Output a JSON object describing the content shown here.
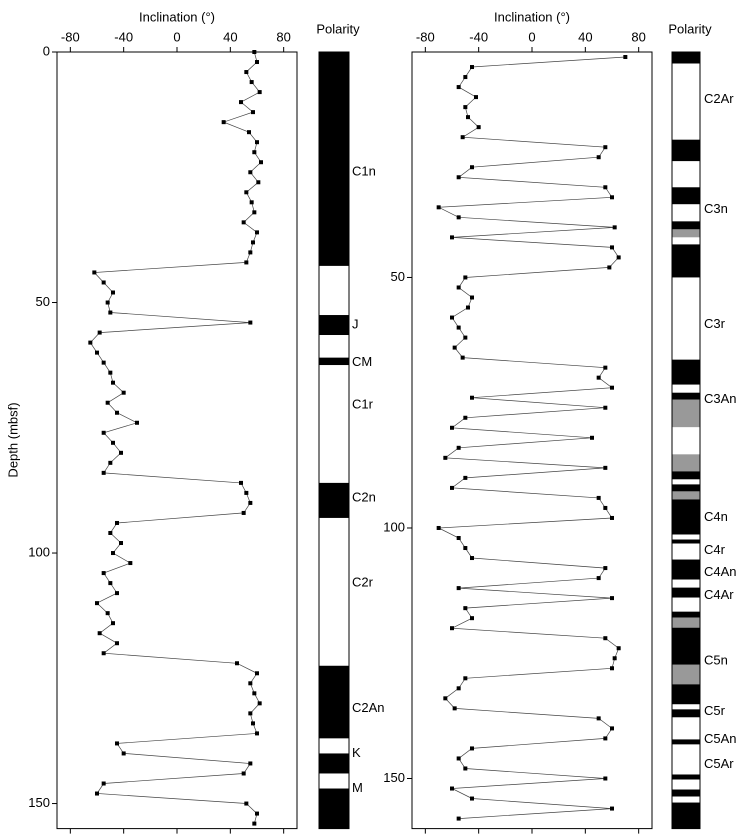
{
  "chart_data": [
    {
      "type": "scatter",
      "xlabel": "Inclination (°)",
      "ylabel": "Depth (mbsf)",
      "xlim": [
        -90,
        90
      ],
      "xticks": [
        -80,
        -40,
        0,
        40,
        80
      ],
      "ylim": [
        0,
        155
      ],
      "yticks": [
        0,
        50,
        100,
        150
      ],
      "color": "#000000",
      "depth": [
        0,
        2,
        4,
        6,
        8,
        10,
        12,
        14,
        16,
        18,
        20,
        22,
        24,
        26,
        28,
        30,
        32,
        34,
        36,
        38,
        40,
        42,
        44,
        46,
        48,
        50,
        52,
        54,
        56,
        58,
        60,
        62,
        64,
        66,
        68,
        70,
        72,
        74,
        76,
        78,
        80,
        82,
        84,
        86,
        88,
        90,
        92,
        94,
        96,
        98,
        100,
        102,
        104,
        106,
        108,
        110,
        112,
        114,
        116,
        118,
        120,
        122,
        124,
        126,
        128,
        130,
        132,
        134,
        136,
        138,
        140,
        142,
        144,
        146,
        148,
        150,
        152,
        154
      ],
      "inclination": [
        58,
        60,
        52,
        56,
        62,
        48,
        57,
        35,
        54,
        60,
        58,
        63,
        55,
        61,
        52,
        56,
        58,
        50,
        60,
        57,
        55,
        52,
        -62,
        -55,
        -48,
        -52,
        -50,
        55,
        -58,
        -65,
        -60,
        -55,
        -50,
        -48,
        -40,
        -52,
        -45,
        -30,
        -55,
        -48,
        -42,
        -50,
        -55,
        48,
        52,
        55,
        50,
        -45,
        -50,
        -42,
        -48,
        -35,
        -55,
        -50,
        -45,
        -60,
        -52,
        -48,
        -58,
        -45,
        -55,
        45,
        60,
        55,
        58,
        62,
        55,
        57,
        60,
        -45,
        -40,
        55,
        50,
        -55,
        -60,
        52,
        60,
        58
      ],
      "polarity": {
        "title": "Polarity",
        "colors": {
          "N": "#000000",
          "R": "#ffffff",
          "U": "#999999"
        },
        "zones": [
          {
            "top": 0,
            "bottom": 42.7,
            "pol": "N"
          },
          {
            "top": 42.7,
            "bottom": 52.5,
            "pol": "R"
          },
          {
            "top": 52.5,
            "bottom": 56.5,
            "pol": "N"
          },
          {
            "top": 56.5,
            "bottom": 61,
            "pol": "R"
          },
          {
            "top": 61,
            "bottom": 62.5,
            "pol": "N"
          },
          {
            "top": 62.5,
            "bottom": 86,
            "pol": "R"
          },
          {
            "top": 86,
            "bottom": 93,
            "pol": "N"
          },
          {
            "top": 93,
            "bottom": 122.5,
            "pol": "R"
          },
          {
            "top": 122.5,
            "bottom": 137,
            "pol": "N"
          },
          {
            "top": 137,
            "bottom": 140,
            "pol": "R"
          },
          {
            "top": 140,
            "bottom": 144,
            "pol": "N"
          },
          {
            "top": 144,
            "bottom": 147,
            "pol": "R"
          },
          {
            "top": 147,
            "bottom": 155,
            "pol": "N"
          }
        ],
        "labels": [
          {
            "text": "C1n",
            "depth": 24
          },
          {
            "text": "J",
            "depth": 54.5
          },
          {
            "text": "CM",
            "depth": 62
          },
          {
            "text": "C1r",
            "depth": 70.5
          },
          {
            "text": "C2n",
            "depth": 89
          },
          {
            "text": "C2r",
            "depth": 106
          },
          {
            "text": "C2An",
            "depth": 131
          },
          {
            "text": "K",
            "depth": 140
          },
          {
            "text": "M",
            "depth": 147
          }
        ]
      }
    },
    {
      "type": "scatter",
      "xlabel": "Inclination (°)",
      "xlim": [
        -90,
        90
      ],
      "xticks": [
        -80,
        -40,
        0,
        40,
        80
      ],
      "ylim": [
        5,
        160
      ],
      "yticks": [
        50,
        100,
        150
      ],
      "color": "#000000",
      "depth": [
        6,
        8,
        10,
        12,
        14,
        16,
        18,
        20,
        22,
        24,
        26,
        28,
        30,
        32,
        34,
        36,
        38,
        40,
        42,
        44,
        46,
        48,
        50,
        52,
        54,
        56,
        58,
        60,
        62,
        64,
        66,
        68,
        70,
        72,
        74,
        76,
        78,
        80,
        82,
        84,
        86,
        88,
        90,
        92,
        94,
        96,
        98,
        100,
        102,
        104,
        106,
        108,
        110,
        112,
        114,
        116,
        118,
        120,
        122,
        124,
        126,
        128,
        130,
        132,
        134,
        136,
        138,
        140,
        142,
        144,
        146,
        148,
        150,
        152,
        154,
        156,
        158
      ],
      "inclination": [
        70,
        -45,
        -50,
        -55,
        -42,
        -50,
        -48,
        -40,
        -52,
        55,
        50,
        -45,
        -55,
        55,
        60,
        -70,
        -55,
        62,
        -60,
        60,
        65,
        58,
        -50,
        -55,
        -45,
        -48,
        -60,
        -55,
        -50,
        -58,
        -52,
        55,
        50,
        60,
        -45,
        55,
        -50,
        -60,
        45,
        -55,
        -65,
        55,
        -50,
        -60,
        50,
        55,
        60,
        -70,
        -55,
        -50,
        -45,
        55,
        50,
        -55,
        60,
        -50,
        -45,
        -60,
        55,
        65,
        62,
        60,
        -50,
        -55,
        -65,
        -58,
        50,
        60,
        55,
        -45,
        -55,
        -50,
        55,
        -60,
        -45,
        60,
        -55
      ],
      "polarity": {
        "title": "Polarity",
        "colors": {
          "N": "#000000",
          "R": "#ffffff",
          "U": "#999999"
        },
        "zones": [
          {
            "top": 5,
            "bottom": 7.3,
            "pol": "N"
          },
          {
            "top": 7.3,
            "bottom": 22.5,
            "pol": "R"
          },
          {
            "top": 22.5,
            "bottom": 26.8,
            "pol": "N"
          },
          {
            "top": 26.8,
            "bottom": 32,
            "pol": "R"
          },
          {
            "top": 32,
            "bottom": 35.4,
            "pol": "N"
          },
          {
            "top": 35.4,
            "bottom": 38.8,
            "pol": "R"
          },
          {
            "top": 38.8,
            "bottom": 40.4,
            "pol": "N"
          },
          {
            "top": 40.4,
            "bottom": 42,
            "pol": "U"
          },
          {
            "top": 42,
            "bottom": 43.4,
            "pol": "R"
          },
          {
            "top": 43.4,
            "bottom": 50,
            "pol": "N"
          },
          {
            "top": 50,
            "bottom": 66.4,
            "pol": "R"
          },
          {
            "top": 66.4,
            "bottom": 71.4,
            "pol": "N"
          },
          {
            "top": 71.4,
            "bottom": 73,
            "pol": "R"
          },
          {
            "top": 73,
            "bottom": 74.4,
            "pol": "N"
          },
          {
            "top": 74.4,
            "bottom": 79.9,
            "pol": "U"
          },
          {
            "top": 79.9,
            "bottom": 85.3,
            "pol": "R"
          },
          {
            "top": 85.3,
            "bottom": 88.7,
            "pol": "U"
          },
          {
            "top": 88.7,
            "bottom": 90.3,
            "pol": "N"
          },
          {
            "top": 90.3,
            "bottom": 91.3,
            "pol": "R"
          },
          {
            "top": 91.3,
            "bottom": 92.7,
            "pol": "N"
          },
          {
            "top": 92.7,
            "bottom": 94.3,
            "pol": "U"
          },
          {
            "top": 94.3,
            "bottom": 101.3,
            "pol": "N"
          },
          {
            "top": 101.3,
            "bottom": 102.3,
            "pol": "R"
          },
          {
            "top": 102.3,
            "bottom": 103.1,
            "pol": "N"
          },
          {
            "top": 103.1,
            "bottom": 106.3,
            "pol": "R"
          },
          {
            "top": 106.3,
            "bottom": 110.3,
            "pol": "N"
          },
          {
            "top": 110.3,
            "bottom": 111.9,
            "pol": "R"
          },
          {
            "top": 111.9,
            "bottom": 113.9,
            "pol": "N"
          },
          {
            "top": 113.9,
            "bottom": 116.7,
            "pol": "R"
          },
          {
            "top": 116.7,
            "bottom": 117.9,
            "pol": "N"
          },
          {
            "top": 117.9,
            "bottom": 119.9,
            "pol": "U"
          },
          {
            "top": 119.9,
            "bottom": 127.3,
            "pol": "N"
          },
          {
            "top": 127.3,
            "bottom": 131.2,
            "pol": "U"
          },
          {
            "top": 131.2,
            "bottom": 135.2,
            "pol": "N"
          },
          {
            "top": 135.2,
            "bottom": 136.2,
            "pol": "R"
          },
          {
            "top": 136.2,
            "bottom": 137.8,
            "pol": "N"
          },
          {
            "top": 137.8,
            "bottom": 142.2,
            "pol": "R"
          },
          {
            "top": 142.2,
            "bottom": 143.2,
            "pol": "N"
          },
          {
            "top": 143.2,
            "bottom": 149.2,
            "pol": "R"
          },
          {
            "top": 149.2,
            "bottom": 150.2,
            "pol": "N"
          },
          {
            "top": 150.2,
            "bottom": 152.2,
            "pol": "R"
          },
          {
            "top": 152.2,
            "bottom": 153.6,
            "pol": "N"
          },
          {
            "top": 153.6,
            "bottom": 154.8,
            "pol": "R"
          },
          {
            "top": 154.8,
            "bottom": 160,
            "pol": "N"
          }
        ],
        "labels": [
          {
            "text": "C2Ar",
            "depth": 14.5
          },
          {
            "text": "C3n",
            "depth": 36.4
          },
          {
            "text": "C3r",
            "depth": 59.4
          },
          {
            "text": "C3An",
            "depth": 74.4
          },
          {
            "text": "C4n",
            "depth": 97.9
          },
          {
            "text": "C4r",
            "depth": 104.5
          },
          {
            "text": "C4An",
            "depth": 108.9
          },
          {
            "text": "C4Ar",
            "depth": 113.5
          },
          {
            "text": "C5n",
            "depth": 126.6
          },
          {
            "text": "C5r",
            "depth": 136.6
          },
          {
            "text": "C5An",
            "depth": 142.2
          },
          {
            "text": "C5Ar",
            "depth": 147.2
          }
        ]
      }
    }
  ]
}
